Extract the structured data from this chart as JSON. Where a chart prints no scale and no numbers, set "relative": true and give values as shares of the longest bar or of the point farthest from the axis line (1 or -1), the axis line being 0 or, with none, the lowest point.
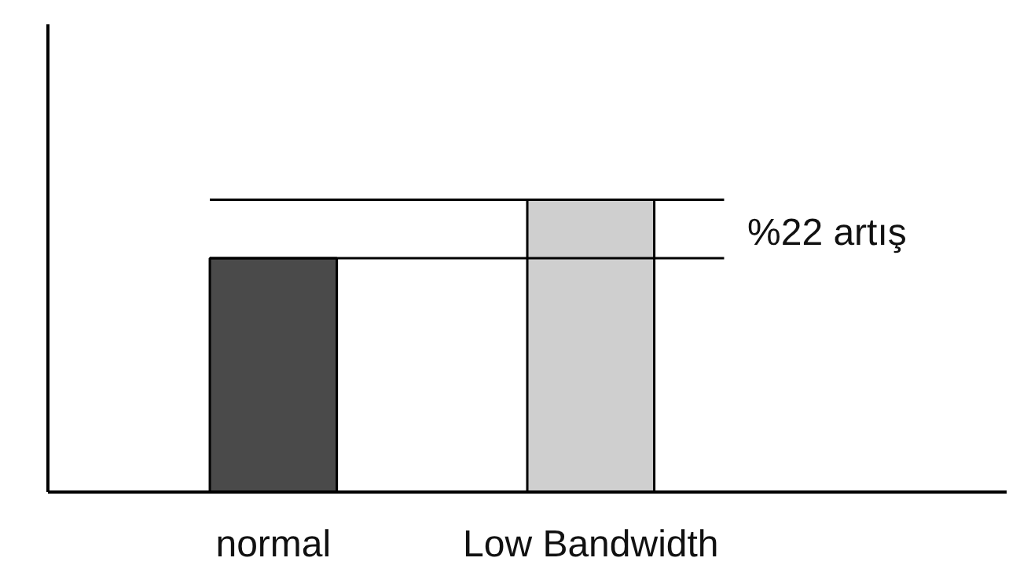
{
  "chart_data": {
    "type": "bar",
    "relative": true,
    "categories": [
      "normal",
      "Low Bandwidth"
    ],
    "values": [
      0.8,
      1.0
    ],
    "colors": [
      "#4a4a4a",
      "#cfcfcf"
    ],
    "ref_lines": [
      {
        "axis": "y",
        "value": 0.8,
        "color": "#000000"
      },
      {
        "axis": "y",
        "value": 1.0,
        "color": "#000000"
      }
    ],
    "annotations": [
      "%22 artış"
    ],
    "grid": false
  }
}
